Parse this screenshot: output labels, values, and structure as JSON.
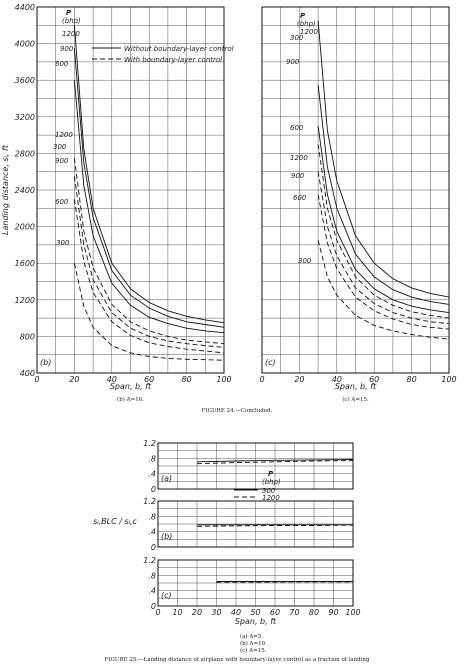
{
  "chart_data": [
    {
      "type": "line",
      "panel_label": "(b)",
      "caption": "(b) A=10.",
      "xlabel": "Span, b, ft",
      "ylabel": "Landing distance, sₗ, ft",
      "xlim": [
        0,
        100
      ],
      "ylim": [
        400,
        4400
      ],
      "x_ticks": [
        0,
        20,
        40,
        60,
        80,
        100
      ],
      "y_ticks": [
        400,
        800,
        1200,
        1600,
        2000,
        2400,
        2800,
        3200,
        3600,
        4000,
        4400
      ],
      "grid": true,
      "legend_title": "P",
      "legend_unit": "(bhp)",
      "legend": [
        {
          "label": "Without boundary-layer control",
          "style": "solid"
        },
        {
          "label": "With boundary-layer control",
          "style": "dashed"
        }
      ],
      "series": [
        {
          "label": "1200",
          "style": "solid",
          "x": [
            20,
            25,
            30,
            40,
            50,
            60,
            70,
            80,
            90,
            100
          ],
          "y": [
            4200,
            2850,
            2200,
            1600,
            1320,
            1170,
            1080,
            1020,
            980,
            950
          ]
        },
        {
          "label": "900",
          "style": "solid",
          "x": [
            20,
            25,
            30,
            40,
            50,
            60,
            70,
            80,
            90,
            100
          ],
          "y": [
            3950,
            2700,
            2100,
            1520,
            1250,
            1110,
            1020,
            960,
            930,
            900
          ]
        },
        {
          "label": "600",
          "style": "solid",
          "x": [
            20,
            25,
            30,
            40,
            50,
            60,
            70,
            80,
            90,
            100
          ],
          "y": [
            3600,
            2450,
            1900,
            1380,
            1140,
            1010,
            940,
            890,
            860,
            840
          ]
        },
        {
          "label": "1200",
          "style": "dashed",
          "x": [
            20,
            25,
            30,
            40,
            50,
            60,
            70,
            80,
            90,
            100
          ],
          "y": [
            2750,
            1950,
            1550,
            1150,
            960,
            860,
            800,
            760,
            740,
            720
          ]
        },
        {
          "label": "300",
          "style": "dashed",
          "x": [
            20,
            25,
            30,
            40,
            50,
            60,
            70,
            80,
            90,
            100
          ],
          "y": [
            2550,
            1800,
            1420,
            1060,
            890,
            800,
            750,
            720,
            700,
            680
          ]
        },
        {
          "label": "600",
          "style": "dashed",
          "x": [
            20,
            25,
            30,
            40,
            50,
            60,
            70,
            80,
            90,
            100
          ],
          "y": [
            2300,
            1620,
            1280,
            960,
            810,
            730,
            690,
            660,
            640,
            620
          ]
        },
        {
          "label": "300",
          "style": "dashed",
          "x": [
            20,
            25,
            30,
            40,
            50,
            60,
            70,
            80,
            90,
            100
          ],
          "y": [
            1600,
            1130,
            900,
            700,
            620,
            580,
            560,
            550,
            545,
            540
          ]
        }
      ]
    },
    {
      "type": "line",
      "panel_label": "(c)",
      "caption": "(c) A=15.",
      "xlabel": "Span, b, ft",
      "xlim": [
        0,
        100
      ],
      "ylim": [
        400,
        4400
      ],
      "x_ticks": [
        0,
        20,
        40,
        60,
        80,
        100
      ],
      "grid": true,
      "legend_title": "P",
      "legend_unit": "(bhp)",
      "series": [
        {
          "label": "1200",
          "style": "solid",
          "x": [
            30,
            35,
            40,
            50,
            60,
            70,
            80,
            90,
            100
          ],
          "y": [
            4250,
            3050,
            2500,
            1900,
            1600,
            1430,
            1330,
            1270,
            1230
          ]
        },
        {
          "label": "900",
          "style": "solid",
          "x": [
            30,
            35,
            40,
            50,
            60,
            70,
            80,
            90,
            100
          ],
          "y": [
            3550,
            2650,
            2200,
            1700,
            1450,
            1310,
            1230,
            1180,
            1150
          ]
        },
        {
          "label": "600",
          "style": "solid",
          "x": [
            30,
            35,
            40,
            50,
            60,
            70,
            80,
            90,
            100
          ],
          "y": [
            3100,
            2350,
            1950,
            1530,
            1320,
            1200,
            1130,
            1090,
            1060
          ]
        },
        {
          "label": "1200",
          "style": "dashed",
          "x": [
            30,
            35,
            40,
            50,
            60,
            70,
            80,
            90,
            100
          ],
          "y": [
            2900,
            2200,
            1850,
            1450,
            1250,
            1140,
            1070,
            1030,
            1000
          ]
        },
        {
          "label": "900",
          "style": "dashed",
          "x": [
            30,
            35,
            40,
            50,
            60,
            70,
            80,
            90,
            100
          ],
          "y": [
            2600,
            2000,
            1680,
            1330,
            1160,
            1060,
            1000,
            960,
            940
          ]
        },
        {
          "label": "600",
          "style": "dashed",
          "x": [
            30,
            35,
            40,
            50,
            60,
            70,
            80,
            90,
            100
          ],
          "y": [
            2350,
            1820,
            1540,
            1230,
            1080,
            990,
            930,
            900,
            880
          ]
        },
        {
          "label": "300",
          "style": "dashed",
          "x": [
            30,
            35,
            40,
            50,
            60,
            70,
            80,
            90,
            100
          ],
          "y": [
            1850,
            1450,
            1250,
            1030,
            920,
            860,
            820,
            790,
            770
          ]
        }
      ]
    },
    {
      "type": "line",
      "panel_label": "(a)",
      "caption": "(a) A=5.",
      "xlim": [
        0,
        100
      ],
      "ylim": [
        0,
        1.2
      ],
      "y_ticks": [
        0,
        0.4,
        0.8,
        1.2
      ],
      "y_tick_labels": [
        "0",
        ".4",
        ".8",
        "1.2"
      ],
      "grid": true,
      "legend_title": "P",
      "legend_unit": "(bhp)",
      "legend": [
        {
          "label": "300",
          "style": "solid"
        },
        {
          "label": "1200",
          "style": "dashed"
        }
      ],
      "series": [
        {
          "label": "300",
          "style": "solid",
          "x": [
            20,
            40,
            60,
            80,
            100
          ],
          "y": [
            0.71,
            0.73,
            0.75,
            0.76,
            0.77
          ]
        },
        {
          "label": "1200",
          "style": "dashed",
          "x": [
            20,
            40,
            60,
            80,
            100
          ],
          "y": [
            0.66,
            0.69,
            0.71,
            0.73,
            0.74
          ]
        }
      ]
    },
    {
      "type": "line",
      "panel_label": "(b)",
      "caption": "(b) A=10.",
      "ylabel": "sₗ,BLC / sₗ,c",
      "xlim": [
        0,
        100
      ],
      "ylim": [
        0,
        1.2
      ],
      "y_ticks": [
        0,
        0.4,
        0.8,
        1.2
      ],
      "y_tick_labels": [
        "0",
        ".4",
        ".8",
        "1.2"
      ],
      "grid": true,
      "series": [
        {
          "label": "300",
          "style": "solid",
          "x": [
            20,
            40,
            60,
            80,
            100
          ],
          "y": [
            0.58,
            0.58,
            0.58,
            0.58,
            0.58
          ]
        },
        {
          "label": "1200",
          "style": "dashed",
          "x": [
            20,
            40,
            60,
            80,
            100
          ],
          "y": [
            0.54,
            0.55,
            0.56,
            0.56,
            0.57
          ]
        }
      ]
    },
    {
      "type": "line",
      "panel_label": "(c)",
      "caption": "(c) A=15.",
      "xlabel": "Span, b, ft",
      "xlim": [
        0,
        100
      ],
      "ylim": [
        0,
        1.2
      ],
      "x_ticks": [
        0,
        10,
        20,
        30,
        40,
        50,
        60,
        70,
        80,
        90,
        100
      ],
      "y_ticks": [
        0,
        0.4,
        0.8,
        1.2
      ],
      "y_tick_labels": [
        "0",
        ".4",
        ".8",
        "1.2"
      ],
      "grid": true,
      "series": [
        {
          "label": "300",
          "style": "solid",
          "x": [
            30,
            50,
            70,
            100
          ],
          "y": [
            0.64,
            0.64,
            0.64,
            0.64
          ]
        },
        {
          "label": "1200",
          "style": "dashed",
          "x": [
            30,
            50,
            70,
            100
          ],
          "y": [
            0.62,
            0.62,
            0.63,
            0.63
          ]
        }
      ]
    }
  ],
  "figure24_caption": "FIGURE 24.—Concluded.",
  "figure25_caption": "FIGURE 25.—Landing distance of airplane with boundary-layer control as a fraction of landing"
}
